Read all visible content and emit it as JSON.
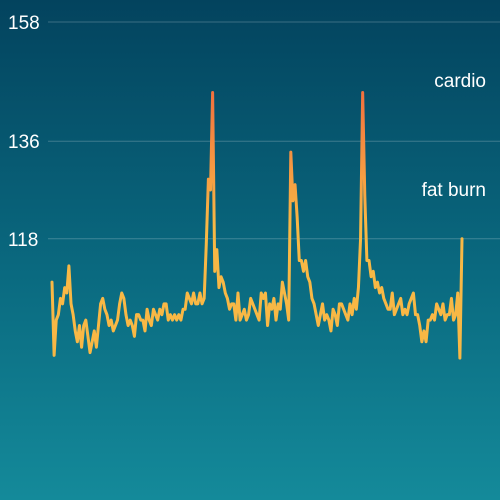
{
  "chart_data": {
    "type": "line",
    "title": "",
    "xlabel": "",
    "ylabel": "",
    "ylim": [
      95,
      158
    ],
    "y_ticks": [
      158,
      136,
      118
    ],
    "zone_labels": [
      "cardio",
      "fat burn"
    ],
    "grid": true,
    "series": [
      {
        "values": [
          110,
          96.5,
          103,
          104,
          107,
          106,
          109,
          108,
          113,
          106,
          104,
          101,
          99,
          102,
          98,
          102,
          103,
          100,
          97,
          99,
          101,
          98,
          102,
          106,
          107,
          105,
          104,
          102,
          103,
          101,
          102,
          103,
          106,
          108,
          107,
          104,
          102,
          103,
          102,
          100,
          104,
          104,
          103,
          103,
          101,
          105,
          103,
          102,
          105,
          104,
          103,
          105,
          104,
          106,
          106,
          103,
          104,
          103,
          104,
          103,
          104,
          103,
          105,
          105,
          108,
          107,
          106,
          108,
          106,
          106,
          108,
          106,
          107,
          117,
          129,
          127,
          145,
          112,
          116,
          109,
          111,
          110,
          108,
          107,
          105,
          106,
          106,
          103,
          108,
          103,
          104,
          105,
          103,
          104,
          107,
          106,
          105,
          104,
          103,
          108,
          107,
          108,
          102,
          106,
          105,
          107,
          103,
          106,
          105,
          110,
          108,
          106,
          103,
          134,
          125,
          128,
          122,
          114,
          114,
          112,
          114,
          111,
          110,
          107,
          106,
          104,
          102,
          104,
          106,
          103,
          104,
          103,
          101,
          105,
          104,
          102,
          106,
          106,
          105,
          104,
          103,
          106,
          104,
          107,
          105,
          109,
          118,
          145,
          126,
          114,
          114,
          111,
          112,
          109,
          110,
          108,
          109,
          107,
          106,
          105,
          105,
          108,
          104,
          105,
          106,
          107,
          104,
          105,
          104,
          106,
          107,
          108,
          104,
          104,
          102,
          99,
          101,
          99,
          103,
          103,
          104,
          103,
          106,
          105,
          104,
          106,
          103,
          104,
          104,
          107,
          103,
          104,
          108,
          96,
          118
        ]
      }
    ]
  },
  "colors": {
    "bg_top": "#03435e",
    "bg_bottom": "#148a9a",
    "line_low": "#f8b845",
    "line_high": "#f0603c",
    "text": "#ffffff"
  }
}
